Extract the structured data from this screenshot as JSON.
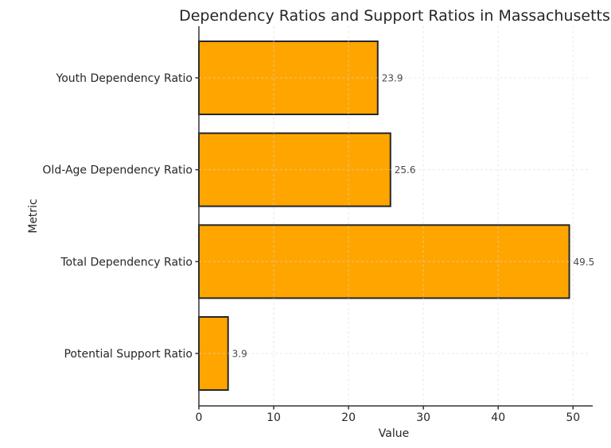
{
  "chart_data": {
    "type": "bar",
    "orientation": "horizontal",
    "title": "Dependency Ratios and Support Ratios in Massachusetts",
    "xlabel": "Value",
    "ylabel": "Metric",
    "categories": [
      "Youth Dependency Ratio",
      "Old-Age Dependency Ratio",
      "Total Dependency Ratio",
      "Potential Support Ratio"
    ],
    "values": [
      23.9,
      25.6,
      49.5,
      3.9
    ],
    "value_labels": [
      "23.9",
      "25.6",
      "49.5",
      "3.9"
    ],
    "x_ticks": [
      0,
      10,
      20,
      30,
      40,
      50
    ],
    "xlim": [
      0,
      52.1
    ],
    "grid": true,
    "grid_style": "dashed",
    "legend": false,
    "colors": {
      "bar_fill": "#FFA500",
      "bar_edge": "#262626",
      "grid": "#d9d9d9",
      "axis": "#333333",
      "text": "#262626",
      "value_label": "#4a4a4a",
      "background": "#ffffff"
    }
  }
}
